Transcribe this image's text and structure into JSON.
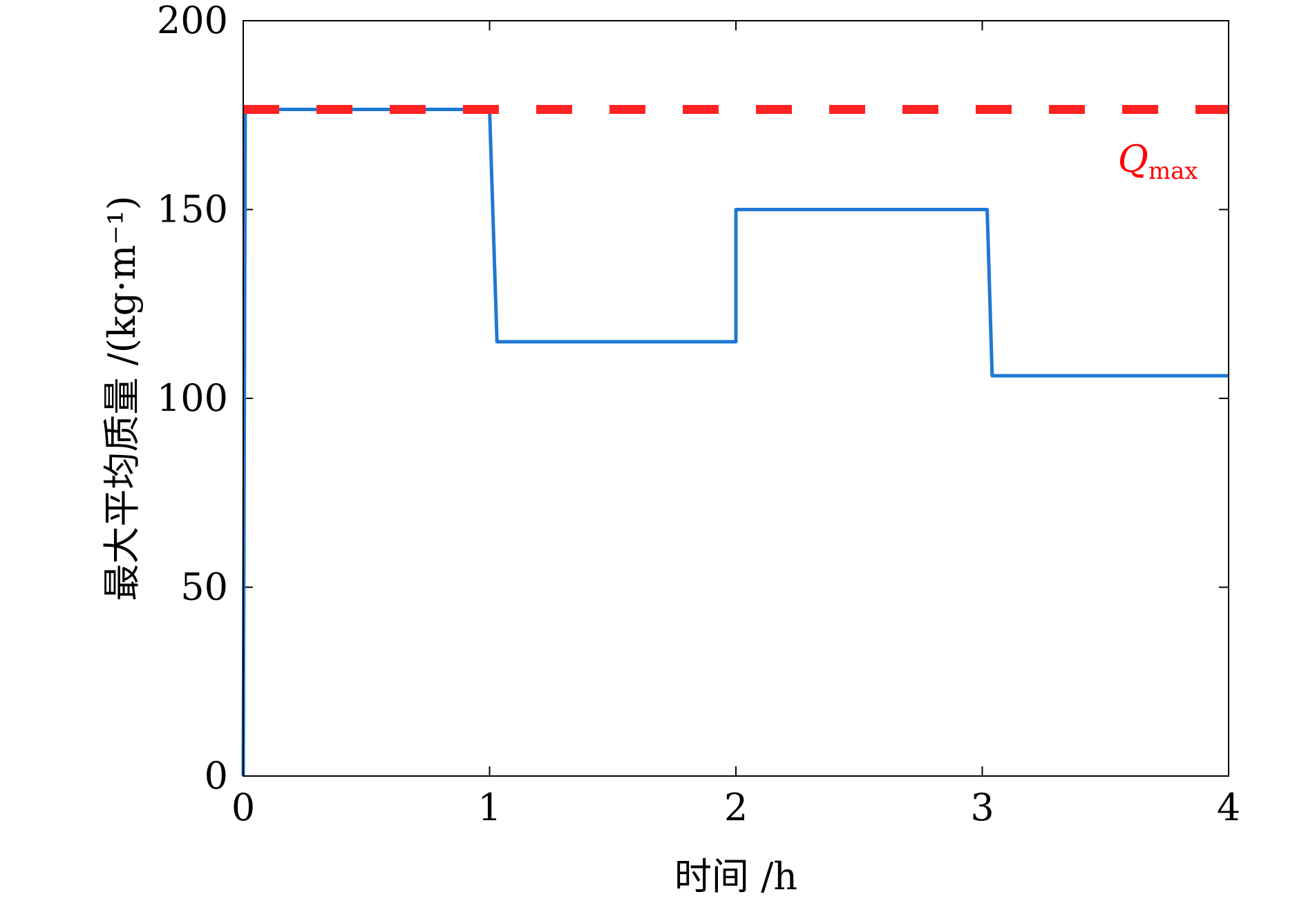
{
  "chart_data": {
    "type": "line",
    "xlabel": "时间 /h",
    "ylabel": "最大平均质量 /(kg·m⁻¹)",
    "xlim": [
      0,
      4
    ],
    "ylim": [
      0,
      200
    ],
    "xticks": [
      0,
      1,
      2,
      3,
      4
    ],
    "yticks": [
      0,
      50,
      100,
      150,
      200
    ],
    "grid": false,
    "series": [
      {
        "color": "#1f77d4",
        "style": "solid",
        "x": [
          0,
          0.008,
          1.0,
          1.03,
          2.0,
          2.0,
          3.02,
          3.04,
          4.0
        ],
        "y": [
          0,
          176.5,
          176.5,
          115,
          115,
          150,
          150,
          106,
          106
        ]
      },
      {
        "color": "#ff2222",
        "style": "dashed",
        "x": [
          0,
          4
        ],
        "y": [
          176.5,
          176.5
        ]
      }
    ],
    "annotations": [
      {
        "text": "Q",
        "subscript": "max",
        "x": 3.55,
        "y": 160,
        "color": "#ff0000"
      }
    ]
  }
}
